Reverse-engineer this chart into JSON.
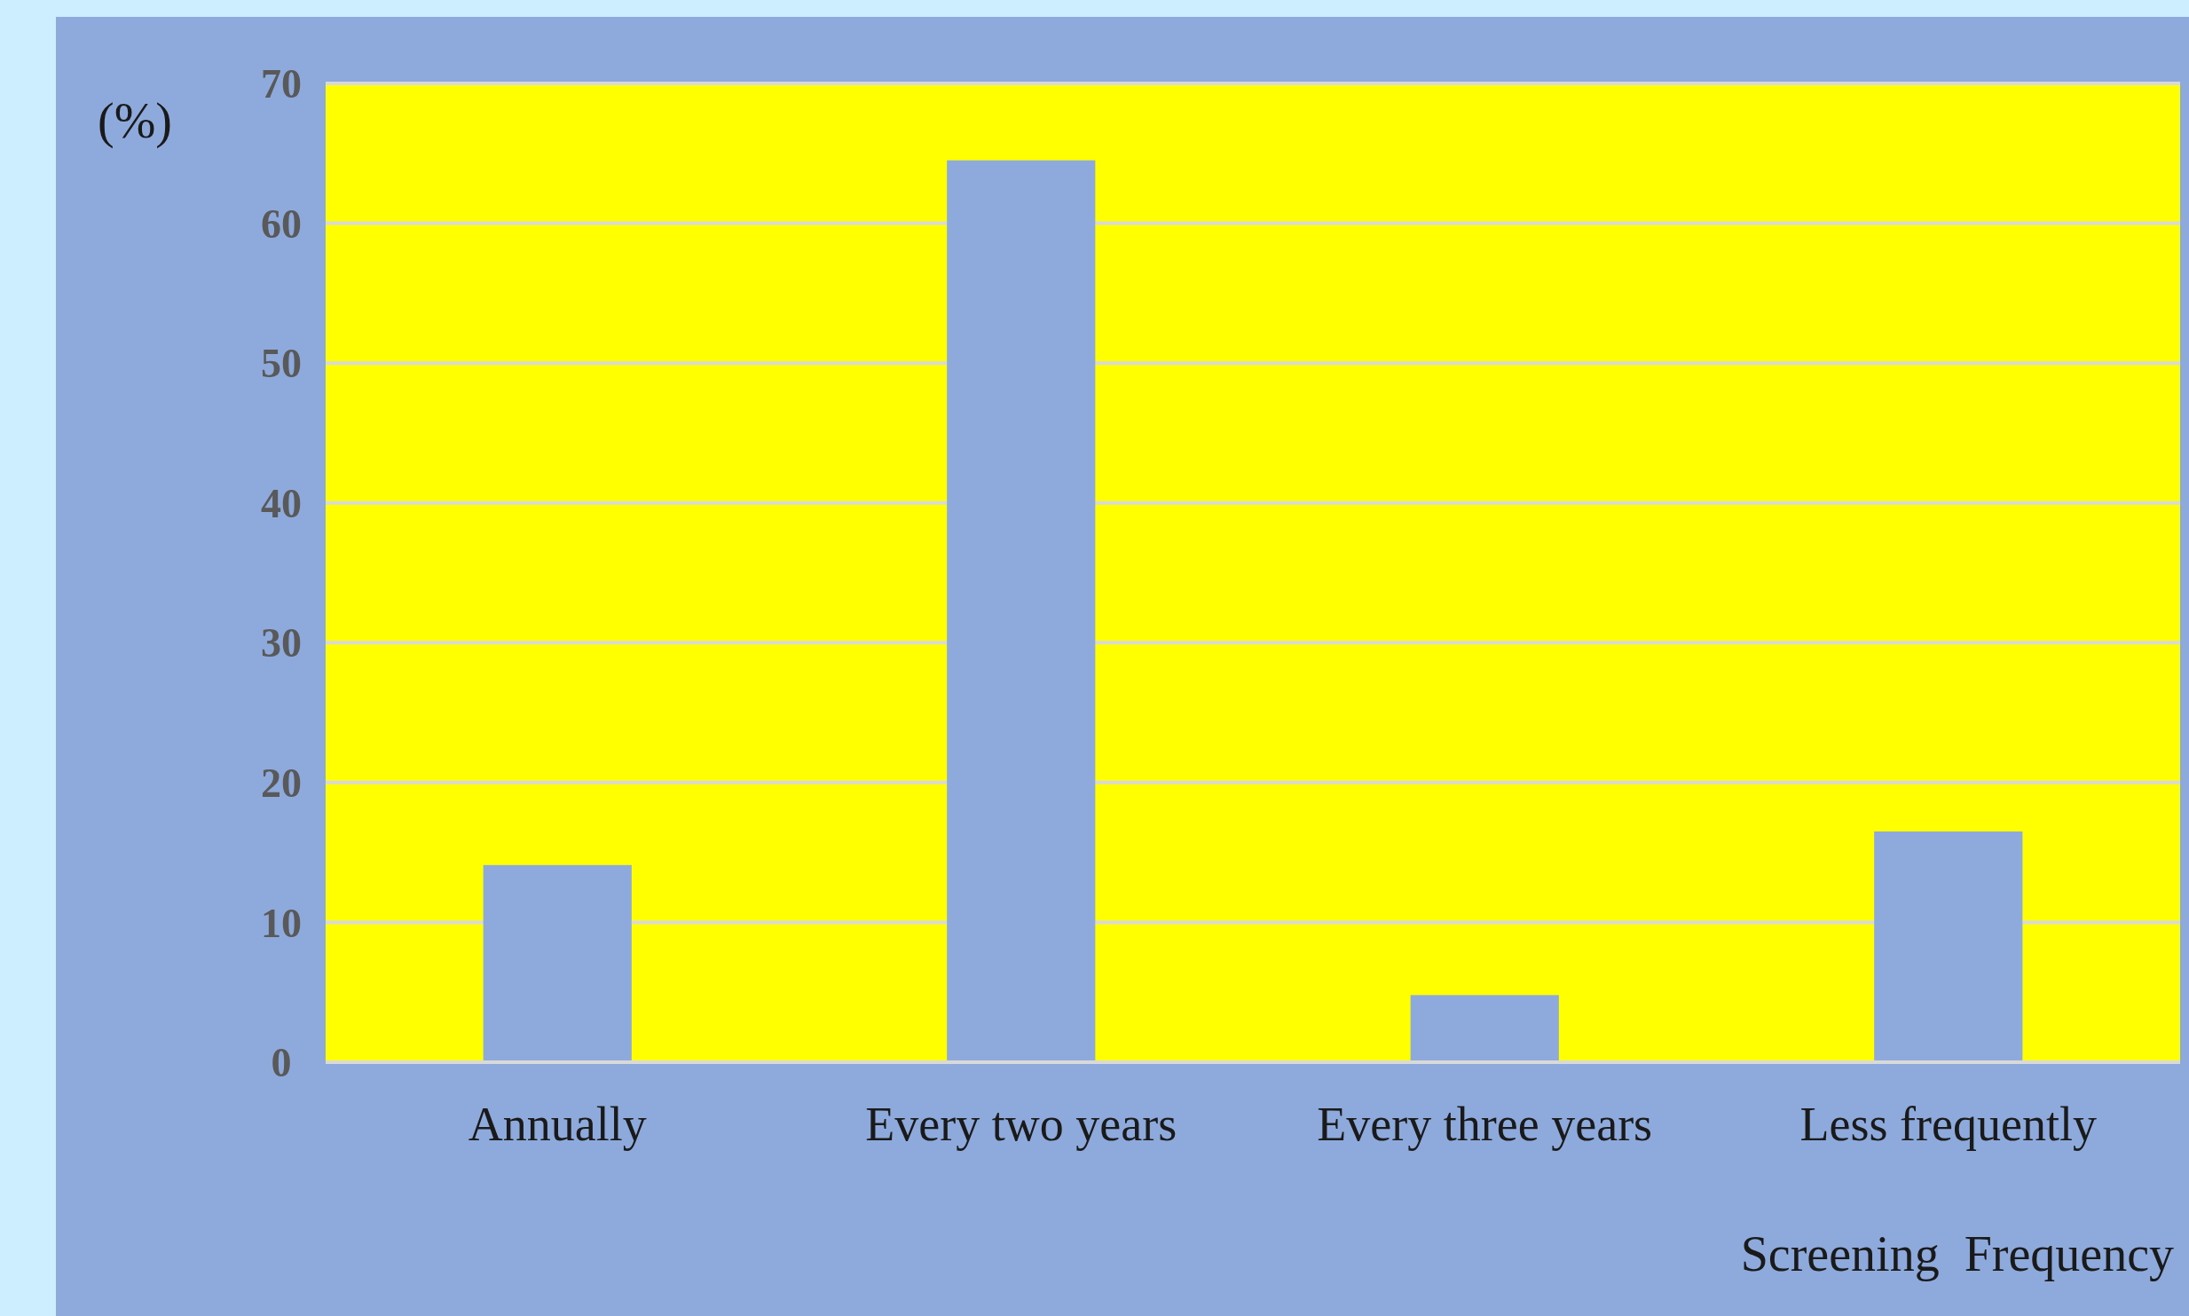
{
  "chart_data": {
    "type": "bar",
    "xlabel": "Screening  Frequency",
    "ylabel": "(%)",
    "categories": [
      "Annually",
      "Every two years",
      "Every three years",
      "Less frequently"
    ],
    "values": [
      14.1,
      64.5,
      4.8,
      16.5
    ],
    "color": "#8eaadc",
    "ylim": [
      0,
      70
    ],
    "yticks": [
      0,
      10,
      20,
      30,
      40,
      50,
      60,
      70
    ],
    "grid": "y"
  }
}
